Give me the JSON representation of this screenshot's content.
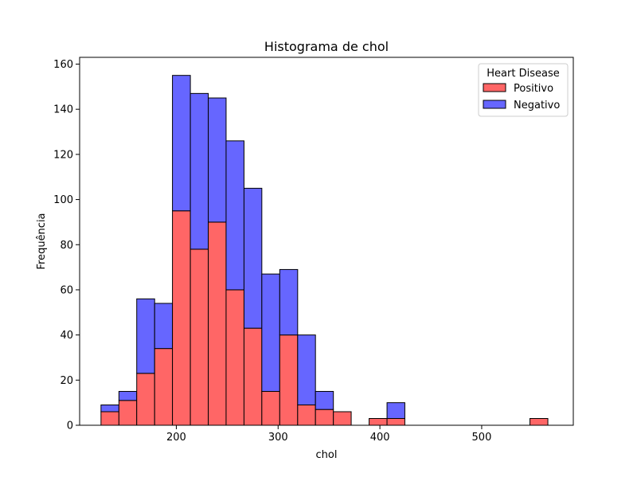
{
  "chart_data": {
    "type": "bar",
    "stacked": true,
    "title": "Histograma de chol",
    "xlabel": "chol",
    "ylabel": "Frequência",
    "xlim": [
      105,
      590
    ],
    "ylim": [
      0,
      163
    ],
    "x_ticks": [
      200,
      300,
      400,
      500
    ],
    "y_ticks": [
      0,
      20,
      40,
      60,
      80,
      100,
      120,
      140,
      160
    ],
    "grid": false,
    "legend": {
      "title": "Heart Disease",
      "placement": "top-right",
      "entries": [
        {
          "label": "Positivo",
          "color": "#ff6666"
        },
        {
          "label": "Negativo",
          "color": "#6666ff"
        }
      ]
    },
    "bins": [
      {
        "start": 126.0,
        "end": 143.6,
        "positivo": 6,
        "negativo": 3
      },
      {
        "start": 143.6,
        "end": 161.1,
        "positivo": 11,
        "negativo": 4
      },
      {
        "start": 161.1,
        "end": 178.7,
        "positivo": 23,
        "negativo": 33
      },
      {
        "start": 178.7,
        "end": 196.2,
        "positivo": 34,
        "negativo": 20
      },
      {
        "start": 196.2,
        "end": 213.8,
        "positivo": 95,
        "negativo": 60
      },
      {
        "start": 213.8,
        "end": 231.4,
        "positivo": 78,
        "negativo": 69
      },
      {
        "start": 231.4,
        "end": 248.9,
        "positivo": 90,
        "negativo": 55
      },
      {
        "start": 248.9,
        "end": 266.5,
        "positivo": 60,
        "negativo": 66
      },
      {
        "start": 266.5,
        "end": 284.0,
        "positivo": 43,
        "negativo": 62
      },
      {
        "start": 284.0,
        "end": 301.6,
        "positivo": 15,
        "negativo": 52
      },
      {
        "start": 301.6,
        "end": 319.2,
        "positivo": 40,
        "negativo": 29
      },
      {
        "start": 319.2,
        "end": 336.7,
        "positivo": 9,
        "negativo": 31
      },
      {
        "start": 336.7,
        "end": 354.3,
        "positivo": 7,
        "negativo": 8
      },
      {
        "start": 354.3,
        "end": 371.8,
        "positivo": 6,
        "negativo": 0
      },
      {
        "start": 371.8,
        "end": 389.4,
        "positivo": 0,
        "negativo": 0
      },
      {
        "start": 389.4,
        "end": 407.0,
        "positivo": 3,
        "negativo": 0
      },
      {
        "start": 407.0,
        "end": 424.5,
        "positivo": 3,
        "negativo": 7
      },
      {
        "start": 424.5,
        "end": 442.1,
        "positivo": 0,
        "negativo": 0
      },
      {
        "start": 442.1,
        "end": 459.6,
        "positivo": 0,
        "negativo": 0
      },
      {
        "start": 459.6,
        "end": 477.2,
        "positivo": 0,
        "negativo": 0
      },
      {
        "start": 477.2,
        "end": 494.8,
        "positivo": 0,
        "negativo": 0
      },
      {
        "start": 494.8,
        "end": 512.3,
        "positivo": 0,
        "negativo": 0
      },
      {
        "start": 512.3,
        "end": 529.9,
        "positivo": 0,
        "negativo": 0
      },
      {
        "start": 529.9,
        "end": 547.4,
        "positivo": 0,
        "negativo": 0
      },
      {
        "start": 547.4,
        "end": 565.0,
        "positivo": 3,
        "negativo": 0
      }
    ]
  }
}
